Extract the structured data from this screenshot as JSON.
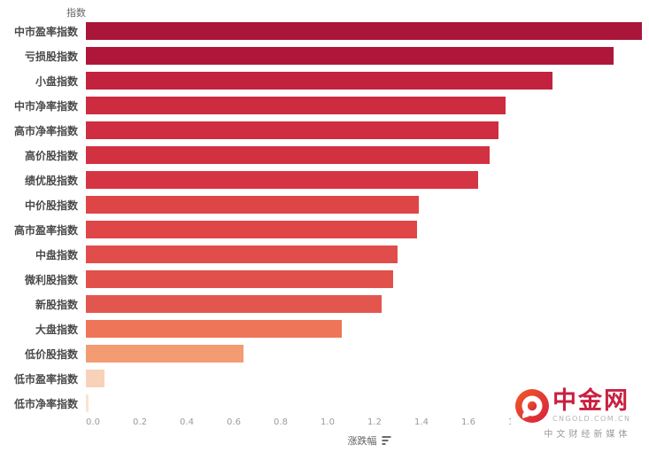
{
  "chart_data": {
    "type": "bar",
    "orientation": "horizontal",
    "xlabel": "涨跌幅",
    "ylabel": "指数",
    "grid": false,
    "sort": "descending",
    "xlim": [
      0,
      2.37
    ],
    "x_ticks": [
      "0.0",
      "0.2",
      "0.4",
      "0.6",
      "0.8",
      "1.0",
      "1.2",
      "1.4",
      "1.6",
      "1.8",
      "2.0"
    ],
    "categories": [
      "中市盈率指数",
      "亏损股指数",
      "小盘指数",
      "中市净率指数",
      "高市净率指数",
      "高价股指数",
      "绩优股指数",
      "中价股指数",
      "高市盈率指数",
      "中盘指数",
      "微利股指数",
      "新股指数",
      "大盘指数",
      "低价股指数",
      "低市盈率指数",
      "低市净率指数"
    ],
    "values": [
      2.37,
      2.25,
      1.99,
      1.79,
      1.76,
      1.72,
      1.67,
      1.42,
      1.41,
      1.33,
      1.31,
      1.26,
      1.09,
      0.67,
      0.08,
      0.01
    ],
    "bar_colors": [
      "#a9163a",
      "#ae1739",
      "#c3223e",
      "#cd2b40",
      "#cf2d41",
      "#d23141",
      "#d53543",
      "#dd4547",
      "#de4647",
      "#e04d4a",
      "#e1504b",
      "#e3564d",
      "#ee7557",
      "#f39b72",
      "#f8d2b8",
      "#fbe3d4"
    ]
  },
  "watermark": {
    "brand": "中金网",
    "domain": "CNGOLD.COM.CN",
    "tagline": "中文财经新媒体",
    "brand_color": "#c9203f",
    "logo_gradient": [
      "#f05a28",
      "#d61f3e"
    ]
  }
}
